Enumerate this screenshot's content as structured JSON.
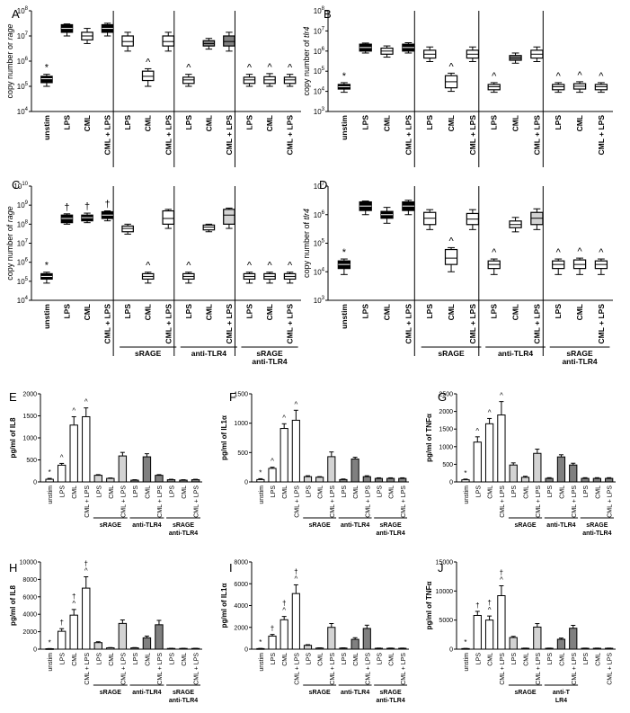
{
  "figure": {
    "panel_letters": [
      "A",
      "B",
      "C",
      "D",
      "E",
      "F",
      "G",
      "H",
      "I",
      "J"
    ],
    "group_labels": {
      "srage": "sRAGE",
      "anti_tlr4": "anti-TLR4",
      "srage_anti_line1": "sRAGE",
      "srage_anti_line2": "anti-TLR4",
      "srage_anti_line2_j": "anti-T LR4"
    },
    "colors": {
      "black": "#000000",
      "white": "#ffffff",
      "light_gray": "#d3d3d3",
      "dark_gray": "#808080"
    }
  },
  "chart_data": [
    {
      "panel": "A",
      "type": "box",
      "ylabel_prefix": "copy number or ",
      "ylabel_italic": "rage",
      "yscale": "log",
      "ylim_exp": [
        4,
        8
      ],
      "categories": [
        "unstim",
        "LPS",
        "CML",
        "CML + LPS",
        "LPS",
        "CML",
        "CML + LPS",
        "LPS",
        "CML",
        "CML + LPS",
        "LPS",
        "CML",
        "CML + LPS"
      ],
      "fills": [
        "black",
        "black",
        "white",
        "black",
        "white",
        "white",
        "white",
        "white",
        "dark_gray",
        "dark_gray",
        "white",
        "white",
        "white"
      ],
      "medians": [
        200000,
        20000000,
        10000000,
        20000000,
        6000000,
        250000,
        6000000,
        180000,
        5000000,
        6000000,
        180000,
        180000,
        180000
      ],
      "box_low": [
        140000,
        14000000,
        7000000,
        14000000,
        4000000,
        170000,
        4000000,
        130000,
        4000000,
        4000000,
        130000,
        130000,
        130000
      ],
      "box_high": [
        250000,
        28000000,
        14000000,
        28000000,
        10000000,
        400000,
        10000000,
        230000,
        6500000,
        10000000,
        230000,
        240000,
        230000
      ],
      "whisker_low": [
        100000,
        10000000,
        5000000,
        10000000,
        2500000,
        100000,
        2500000,
        100000,
        3000000,
        2500000,
        100000,
        100000,
        100000
      ],
      "whisker_high": [
        300000,
        30000000,
        20000000,
        32000000,
        14000000,
        500000,
        14000000,
        300000,
        8000000,
        14000000,
        300000,
        320000,
        300000
      ],
      "annotations": [
        "*",
        "",
        "",
        "",
        "",
        "^",
        "",
        "^",
        "",
        "",
        "^",
        "^",
        "^"
      ],
      "group_labels": []
    },
    {
      "panel": "B",
      "type": "box",
      "ylabel_prefix": "copy number of ",
      "ylabel_italic": "tlr4",
      "yscale": "log",
      "ylim_exp": [
        3,
        8
      ],
      "categories": [
        "unstim",
        "LPS",
        "CML",
        "CML + LPS",
        "LPS",
        "CML",
        "CML + LPS",
        "LPS",
        "CML",
        "CML + LPS",
        "LPS",
        "CML",
        "CML + LPS"
      ],
      "fills": [
        "black",
        "black",
        "white",
        "black",
        "white",
        "white",
        "white",
        "white",
        "dark_gray",
        "white",
        "white",
        "white",
        "white"
      ],
      "medians": [
        17000,
        1500000,
        1000000,
        1500000,
        700000,
        30000,
        700000,
        17000,
        450000,
        700000,
        17000,
        18000,
        17000
      ],
      "box_low": [
        13000,
        1000000,
        700000,
        1000000,
        450000,
        15000,
        450000,
        12000,
        350000,
        450000,
        12000,
        13000,
        12000
      ],
      "box_high": [
        22000,
        2200000,
        1400000,
        2200000,
        1100000,
        60000,
        1100000,
        22000,
        600000,
        1100000,
        22000,
        24000,
        22000
      ],
      "whisker_low": [
        9000,
        800000,
        500000,
        800000,
        300000,
        10000,
        300000,
        9000,
        250000,
        300000,
        9000,
        9000,
        9000
      ],
      "whisker_high": [
        27000,
        2500000,
        1800000,
        2600000,
        1600000,
        80000,
        1600000,
        27000,
        800000,
        1600000,
        27000,
        30000,
        27000
      ],
      "annotations": [
        "*",
        "",
        "",
        "",
        "",
        "^",
        "",
        "^",
        "",
        "",
        "^",
        "^",
        "^"
      ],
      "group_labels": []
    },
    {
      "panel": "C",
      "type": "box",
      "ylabel_prefix": "copy number of ",
      "ylabel_italic": "rage",
      "yscale": "log",
      "ylim_exp": [
        4,
        10
      ],
      "categories": [
        "unstim",
        "LPS",
        "CML",
        "CML + LPS",
        "LPS",
        "CML",
        "CML + LPS",
        "LPS",
        "CML",
        "CML + LPS",
        "LPS",
        "CML",
        "CML + LPS"
      ],
      "fills": [
        "black",
        "black",
        "black",
        "black",
        "white",
        "white",
        "white",
        "white",
        "white",
        "light_gray",
        "white",
        "white",
        "white"
      ],
      "medians": [
        180000,
        200000000,
        220000000,
        300000000,
        60000000,
        180000,
        200000000,
        180000,
        70000000,
        300000000,
        180000,
        180000,
        180000
      ],
      "box_low": [
        130000,
        120000000,
        150000000,
        200000000,
        40000000,
        130000,
        100000000,
        130000,
        50000000,
        100000000,
        130000,
        130000,
        130000
      ],
      "box_high": [
        250000,
        300000000,
        300000000,
        450000000,
        80000000,
        250000,
        500000000,
        250000,
        90000000,
        600000000,
        250000,
        250000,
        250000
      ],
      "whisker_low": [
        80000,
        100000000,
        120000000,
        150000000,
        30000000,
        80000,
        60000000,
        80000,
        40000000,
        60000000,
        80000,
        80000,
        80000
      ],
      "whisker_high": [
        300000,
        350000000,
        380000000,
        500000000,
        100000000,
        300000,
        600000000,
        300000,
        100000000,
        700000000,
        300000,
        300000,
        300000
      ],
      "annotations": [
        "*",
        "†",
        "†",
        "†",
        "",
        "^",
        "",
        "^",
        "",
        "",
        "^",
        "^",
        "^"
      ],
      "group_labels": [
        "sRAGE",
        "anti-TLR4",
        "sRAGE anti-TLR4"
      ]
    },
    {
      "panel": "D",
      "type": "box",
      "ylabel_prefix": "copy number of ",
      "ylabel_italic": "tlr4",
      "yscale": "log",
      "ylim_exp": [
        3,
        7
      ],
      "categories": [
        "unstim",
        "LPS",
        "CML",
        "CML + LPS",
        "LPS",
        "CML",
        "CML + LPS",
        "LPS",
        "CML",
        "CML + LPS",
        "LPS",
        "CML",
        "CML + LPS"
      ],
      "fills": [
        "black",
        "black",
        "black",
        "black",
        "white",
        "white",
        "white",
        "white",
        "white",
        "light_gray",
        "white",
        "white",
        "white"
      ],
      "medians": [
        18000,
        2000000,
        1000000,
        2000000,
        750000,
        30000,
        700000,
        18000,
        450000,
        750000,
        18000,
        18000,
        18000
      ],
      "box_low": [
        13000,
        1400000,
        750000,
        1400000,
        450000,
        18000,
        450000,
        13000,
        350000,
        450000,
        13000,
        13000,
        13000
      ],
      "box_high": [
        24000,
        2800000,
        1300000,
        2800000,
        1200000,
        60000,
        1100000,
        24000,
        600000,
        1200000,
        24000,
        26000,
        24000
      ],
      "whisker_low": [
        8000,
        1000000,
        500000,
        1000000,
        300000,
        10000,
        300000,
        8000,
        250000,
        300000,
        8000,
        8000,
        8000
      ],
      "whisker_high": [
        28000,
        3000000,
        1800000,
        3200000,
        1500000,
        70000,
        1500000,
        28000,
        800000,
        1600000,
        28000,
        30000,
        28000
      ],
      "annotations": [
        "*",
        "",
        "",
        "",
        "",
        "^",
        "",
        "^",
        "",
        "",
        "^",
        "^",
        "^"
      ],
      "group_labels": [
        "sRAGE",
        "anti-TLR4",
        "sRAGE anti-TLR4"
      ]
    },
    {
      "panel": "E",
      "type": "bar",
      "ylabel": "pg/ml of IL8",
      "ylim": [
        0,
        2000
      ],
      "yticks": [
        "0",
        "500",
        "1000",
        "1500",
        "2000"
      ],
      "categories": [
        "unstim",
        "LPS",
        "CML",
        "CML + LPS",
        "LPS",
        "CML",
        "CML + LPS",
        "LPS",
        "CML",
        "CML + LPS",
        "LPS",
        "CML",
        "CML + LPS"
      ],
      "fills": [
        "white",
        "white",
        "white",
        "white",
        "light_gray",
        "light_gray",
        "light_gray",
        "dark_gray",
        "dark_gray",
        "dark_gray",
        "dark_gray",
        "dark_gray",
        "dark_gray"
      ],
      "values": [
        60,
        380,
        1290,
        1480,
        150,
        80,
        590,
        40,
        570,
        150,
        50,
        40,
        50
      ],
      "errors": [
        20,
        40,
        190,
        200,
        15,
        10,
        80,
        10,
        70,
        15,
        10,
        10,
        10
      ],
      "annotations": [
        "*",
        "^",
        "^",
        "^",
        "",
        "",
        "",
        "",
        "",
        "",
        "",
        "",
        ""
      ],
      "group_labels": [
        "sRAGE",
        "anti-TLR4",
        "sRAGE anti-TLR4"
      ]
    },
    {
      "panel": "F",
      "type": "bar",
      "ylabel": "pg/ml of IL1α",
      "ylim": [
        0,
        1500
      ],
      "yticks": [
        "0",
        "500",
        "1000",
        "1500"
      ],
      "categories": [
        "unstim",
        "LPS",
        "CML",
        "CML + LPS",
        "LPS",
        "CML",
        "CML + LPS",
        "LPS",
        "CML",
        "CML + LPS",
        "LPS",
        "CML",
        "CML + LPS"
      ],
      "fills": [
        "white",
        "white",
        "white",
        "white",
        "light_gray",
        "light_gray",
        "light_gray",
        "dark_gray",
        "dark_gray",
        "dark_gray",
        "dark_gray",
        "dark_gray",
        "dark_gray"
      ],
      "values": [
        40,
        230,
        910,
        1050,
        90,
        80,
        430,
        40,
        390,
        90,
        60,
        60,
        60
      ],
      "errors": [
        15,
        20,
        80,
        170,
        15,
        10,
        80,
        10,
        30,
        15,
        10,
        10,
        10
      ],
      "annotations": [
        "*",
        "^",
        "^",
        "^",
        "",
        "",
        "",
        "",
        "",
        "",
        "",
        "",
        ""
      ],
      "group_labels": [
        "sRAGE",
        "anti-TLR4",
        "sRAGE anti-TLR4"
      ]
    },
    {
      "panel": "G",
      "type": "bar",
      "ylabel": "pg/ml of TNFα",
      "ylim": [
        0,
        2500
      ],
      "yticks": [
        "0",
        "500",
        "1000",
        "1500",
        "2000",
        "2500"
      ],
      "categories": [
        "unstim",
        "LPS",
        "CML",
        "CML + LPS",
        "LPS",
        "CML",
        "CML + LPS",
        "LPS",
        "CML",
        "CML + LPS",
        "LPS",
        "CML",
        "CML + LPS"
      ],
      "fills": [
        "white",
        "white",
        "white",
        "white",
        "light_gray",
        "light_gray",
        "light_gray",
        "dark_gray",
        "dark_gray",
        "dark_gray",
        "dark_gray",
        "dark_gray",
        "dark_gray"
      ],
      "values": [
        60,
        1130,
        1650,
        1900,
        480,
        130,
        810,
        100,
        710,
        480,
        100,
        100,
        100
      ],
      "errors": [
        20,
        150,
        150,
        380,
        60,
        30,
        120,
        20,
        60,
        50,
        20,
        20,
        20
      ],
      "annotations": [
        "*",
        "^",
        "^",
        "^",
        "",
        "",
        "",
        "",
        "",
        "",
        "",
        "",
        ""
      ],
      "group_labels": [
        "sRAGE",
        "anti-TLR4",
        "sRAGE anti-TLR4"
      ]
    },
    {
      "panel": "H",
      "type": "bar",
      "ylabel": "pg/ml of IL8",
      "ylim": [
        0,
        10000
      ],
      "yticks": [
        "0",
        "2000",
        "4000",
        "6000",
        "8000",
        "10000"
      ],
      "categories": [
        "unstim",
        "LPS",
        "CML",
        "CML + LPS",
        "LPS",
        "CML",
        "CML + LPS",
        "LPS",
        "CML",
        "CML + LPS",
        "LPS",
        "CML",
        "CML + LPS"
      ],
      "fills": [
        "white",
        "white",
        "white",
        "white",
        "light_gray",
        "light_gray",
        "light_gray",
        "dark_gray",
        "dark_gray",
        "dark_gray",
        "dark_gray",
        "dark_gray",
        "dark_gray"
      ],
      "values": [
        50,
        2050,
        3900,
        7000,
        750,
        150,
        2950,
        150,
        1300,
        2800,
        80,
        80,
        80
      ],
      "errors": [
        20,
        300,
        650,
        1300,
        100,
        30,
        400,
        30,
        200,
        500,
        20,
        20,
        20
      ],
      "annotations": [
        "*",
        "†",
        "†^",
        "†^",
        "",
        "",
        "",
        "",
        "",
        "",
        "",
        "",
        ""
      ],
      "group_labels": [
        "sRAGE",
        "anti-TLR4",
        "sRAGE anti-TLR4"
      ]
    },
    {
      "panel": "I",
      "type": "bar",
      "ylabel": "pg/ml of IL1α",
      "ylim": [
        0,
        8000
      ],
      "yticks": [
        "0",
        "2000",
        "4000",
        "6000",
        "8000"
      ],
      "categories": [
        "unstim",
        "LPS",
        "CML",
        "CML + LPS",
        "LPS",
        "CML",
        "CML + LPS",
        "LPS",
        "CML",
        "CML + LPS",
        "LPS",
        "CML",
        "CML + LPS"
      ],
      "fills": [
        "white",
        "white",
        "white",
        "white",
        "light_gray",
        "light_gray",
        "light_gray",
        "dark_gray",
        "dark_gray",
        "dark_gray",
        "dark_gray",
        "dark_gray",
        "dark_gray"
      ],
      "values": [
        50,
        1200,
        2700,
        5100,
        350,
        100,
        2000,
        100,
        900,
        1900,
        80,
        80,
        80
      ],
      "errors": [
        20,
        150,
        300,
        800,
        60,
        20,
        350,
        20,
        150,
        300,
        20,
        20,
        20
      ],
      "annotations": [
        "*",
        "†",
        "†^",
        "†^",
        "",
        "",
        "",
        "",
        "",
        "",
        "",
        "",
        ""
      ],
      "group_labels": [
        "sRAGE",
        "anti-TLR4",
        "sRAGE anti-TLR4"
      ]
    },
    {
      "panel": "J",
      "type": "bar",
      "ylabel": "pg/ml of TNFα",
      "ylim": [
        0,
        15000
      ],
      "yticks": [
        "0",
        "5000",
        "10000",
        "15000"
      ],
      "categories": [
        "unstim",
        "LPS",
        "CML",
        "CML + LPS",
        "LPS",
        "CML",
        "CML + LPS",
        "LPS",
        "CML",
        "CML + LPS",
        "LPS",
        "CML",
        "CML + LPS"
      ],
      "fills": [
        "white",
        "white",
        "white",
        "white",
        "light_gray",
        "light_gray",
        "light_gray",
        "dark_gray",
        "dark_gray",
        "dark_gray",
        "dark_gray",
        "dark_gray",
        "dark_gray"
      ],
      "values": [
        100,
        5800,
        5000,
        9200,
        2000,
        150,
        3800,
        150,
        1700,
        3600,
        150,
        150,
        150
      ],
      "errors": [
        30,
        700,
        700,
        1700,
        200,
        30,
        600,
        30,
        200,
        500,
        30,
        30,
        30
      ],
      "annotations": [
        "*",
        "†",
        "†^",
        "†^",
        "",
        "",
        "",
        "",
        "",
        "",
        "",
        "",
        ""
      ],
      "group_labels": [
        "sRAGE",
        "anti-T LR4"
      ]
    }
  ]
}
